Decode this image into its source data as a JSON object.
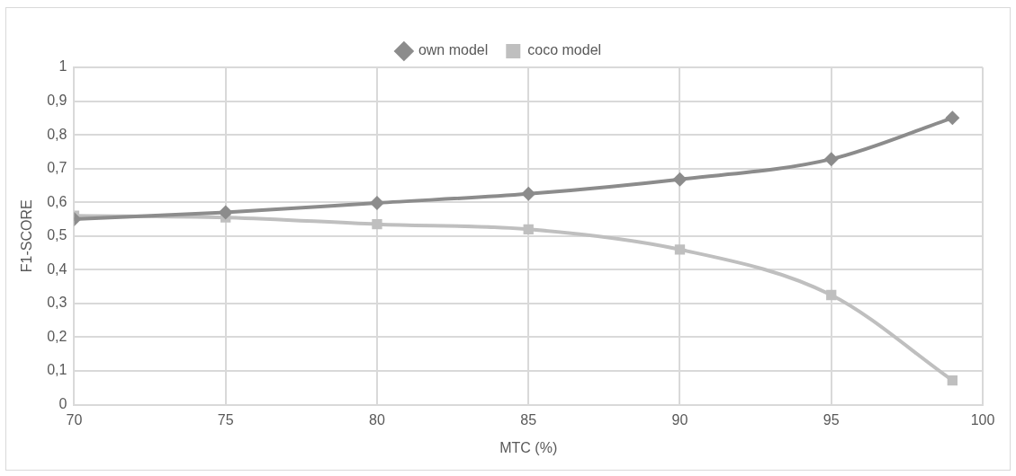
{
  "chart_data": {
    "type": "line",
    "xlabel": "MTC (%)",
    "ylabel": "F1-SCORE",
    "x": [
      70,
      75,
      80,
      85,
      90,
      95,
      99
    ],
    "series": [
      {
        "name": "own model",
        "color": "#8c8c8c",
        "marker": "diamond",
        "values": [
          0.55,
          0.57,
          0.598,
          0.625,
          0.668,
          0.728,
          0.85
        ]
      },
      {
        "name": "coco model",
        "color": "#bfbfbf",
        "marker": "square",
        "values": [
          0.56,
          0.555,
          0.535,
          0.52,
          0.46,
          0.325,
          0.072
        ]
      }
    ],
    "xlim": [
      70,
      100
    ],
    "xticks": [
      70,
      75,
      80,
      85,
      90,
      95,
      100
    ],
    "ylim": [
      0,
      1
    ],
    "yticks": [
      0,
      {
        "value": 0.1,
        "label": "0,1"
      },
      {
        "value": 0.2,
        "label": "0,2"
      },
      {
        "value": 0.3,
        "label": "0,3"
      },
      {
        "value": 0.4,
        "label": "0,4"
      },
      {
        "value": 0.5,
        "label": "0,5"
      },
      {
        "value": 0.6,
        "label": "0,6"
      },
      {
        "value": 0.7,
        "label": "0,7"
      },
      {
        "value": 0.8,
        "label": "0,8"
      },
      {
        "value": 0.9,
        "label": "0,9"
      },
      1
    ],
    "grid": true,
    "legend": "top"
  }
}
